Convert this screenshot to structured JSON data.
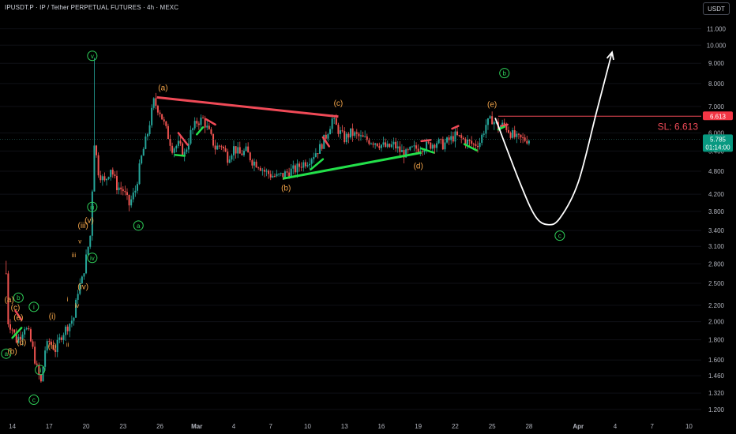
{
  "header": {
    "title": "IPUSDT.P · IP / Tether PERPETUAL FUTURES · 4h · MEXC",
    "currency": "USDT"
  },
  "colors": {
    "background": "#000000",
    "up_candle": "#26a69a",
    "down_candle": "#ef5350",
    "green_marker": "#2fd15a",
    "orange_label": "#f5a64a",
    "red_line": "#f04a57",
    "green_line": "#23e04a",
    "projection": "#ffffff",
    "price_tag_red": "#f23645",
    "price_tag_teal": "#089981"
  },
  "chart_data": {
    "type": "candlestick",
    "symbol": "IPUSDT.P",
    "timeframe": "4h",
    "y_scale": "log",
    "ylim": [
      1.14,
      12.2
    ],
    "y_ticks": [
      "11.000",
      "10.000",
      "9.000",
      "8.000",
      "7.000",
      "6.000",
      "5.400",
      "4.800",
      "4.200",
      "3.800",
      "3.400",
      "3.100",
      "2.800",
      "2.500",
      "2.200",
      "2.000",
      "1.800",
      "1.600",
      "1.460",
      "1.320",
      "1.200"
    ],
    "x_range": [
      "2025-02-13",
      "2025-04-11"
    ],
    "x_ticks": [
      {
        "date": "2025-02-14",
        "label": "14"
      },
      {
        "date": "2025-02-17",
        "label": "17"
      },
      {
        "date": "2025-02-20",
        "label": "20"
      },
      {
        "date": "2025-02-23",
        "label": "23"
      },
      {
        "date": "2025-02-26",
        "label": "26"
      },
      {
        "date": "2025-03-01",
        "label": "Mar"
      },
      {
        "date": "2025-03-04",
        "label": "4"
      },
      {
        "date": "2025-03-07",
        "label": "7"
      },
      {
        "date": "2025-03-10",
        "label": "10"
      },
      {
        "date": "2025-03-13",
        "label": "13"
      },
      {
        "date": "2025-03-16",
        "label": "16"
      },
      {
        "date": "2025-03-19",
        "label": "19"
      },
      {
        "date": "2025-03-22",
        "label": "22"
      },
      {
        "date": "2025-03-25",
        "label": "25"
      },
      {
        "date": "2025-03-28",
        "label": "28"
      },
      {
        "date": "2025-04-01",
        "label": "Apr"
      },
      {
        "date": "2025-04-04",
        "label": "4"
      },
      {
        "date": "2025-04-07",
        "label": "7"
      },
      {
        "date": "2025-04-10",
        "label": "10"
      }
    ],
    "price_path": [
      [
        "2025-02-13 12:00",
        2.65
      ],
      [
        "2025-02-13 16:00",
        2.0
      ],
      [
        "2025-02-14 00:00",
        1.92
      ],
      [
        "2025-02-14 08:00",
        1.8
      ],
      [
        "2025-02-14 16:00",
        1.85
      ],
      [
        "2025-02-15 00:00",
        1.95
      ],
      [
        "2025-02-15 08:00",
        1.86
      ],
      [
        "2025-02-15 16:00",
        1.7
      ],
      [
        "2025-02-16 00:00",
        1.52
      ],
      [
        "2025-02-16 08:00",
        1.4
      ],
      [
        "2025-02-16 16:00",
        1.7
      ],
      [
        "2025-02-17 00:00",
        1.78
      ],
      [
        "2025-02-17 12:00",
        1.7
      ],
      [
        "2025-02-18 00:00",
        1.85
      ],
      [
        "2025-02-18 12:00",
        1.95
      ],
      [
        "2025-02-19 00:00",
        2.05
      ],
      [
        "2025-02-19 08:00",
        2.4
      ],
      [
        "2025-02-19 16:00",
        2.55
      ],
      [
        "2025-02-20 00:00",
        2.9
      ],
      [
        "2025-02-20 08:00",
        3.3
      ],
      [
        "2025-02-20 16:00",
        5.7
      ],
      [
        "2025-02-21 00:00",
        4.8
      ],
      [
        "2025-02-21 12:00",
        4.5
      ],
      [
        "2025-02-22 00:00",
        4.9
      ],
      [
        "2025-02-22 12:00",
        4.4
      ],
      [
        "2025-02-23 00:00",
        4.3
      ],
      [
        "2025-02-23 12:00",
        3.95
      ],
      [
        "2025-02-24 00:00",
        4.3
      ],
      [
        "2025-02-24 12:00",
        5.2
      ],
      [
        "2025-02-25 00:00",
        6.0
      ],
      [
        "2025-02-25 12:00",
        7.2
      ],
      [
        "2025-02-26 00:00",
        6.8
      ],
      [
        "2025-02-26 12:00",
        6.1
      ],
      [
        "2025-02-27 00:00",
        5.5
      ],
      [
        "2025-02-27 12:00",
        5.6
      ],
      [
        "2025-02-28 00:00",
        5.3
      ],
      [
        "2025-02-28 12:00",
        6.0
      ],
      [
        "2025-03-01 00:00",
        6.4
      ],
      [
        "2025-03-01 12:00",
        6.5
      ],
      [
        "2025-03-02 00:00",
        6.0
      ],
      [
        "2025-03-02 12:00",
        5.5
      ],
      [
        "2025-03-03 00:00",
        5.6
      ],
      [
        "2025-03-03 12:00",
        5.2
      ],
      [
        "2025-03-04 00:00",
        5.5
      ],
      [
        "2025-03-04 12:00",
        5.3
      ],
      [
        "2025-03-05 00:00",
        5.4
      ],
      [
        "2025-03-05 12:00",
        5.1
      ],
      [
        "2025-03-06 00:00",
        5.0
      ],
      [
        "2025-03-06 12:00",
        4.8
      ],
      [
        "2025-03-07 00:00",
        4.7
      ],
      [
        "2025-03-07 12:00",
        4.65
      ],
      [
        "2025-03-08 00:00",
        4.7
      ],
      [
        "2025-03-08 12:00",
        4.8
      ],
      [
        "2025-03-09 00:00",
        4.85
      ],
      [
        "2025-03-09 12:00",
        5.0
      ],
      [
        "2025-03-10 00:00",
        5.1
      ],
      [
        "2025-03-10 12:00",
        5.3
      ],
      [
        "2025-03-11 00:00",
        5.5
      ],
      [
        "2025-03-11 12:00",
        5.9
      ],
      [
        "2025-03-12 00:00",
        6.5
      ],
      [
        "2025-03-12 12:00",
        6.1
      ],
      [
        "2025-03-13 00:00",
        5.8
      ],
      [
        "2025-03-13 12:00",
        6.0
      ],
      [
        "2025-03-14 00:00",
        5.9
      ],
      [
        "2025-03-14 12:00",
        5.8
      ],
      [
        "2025-03-15 00:00",
        5.75
      ],
      [
        "2025-03-15 12:00",
        5.7
      ],
      [
        "2025-03-16 00:00",
        5.6
      ],
      [
        "2025-03-16 12:00",
        5.5
      ],
      [
        "2025-03-17 00:00",
        5.6
      ],
      [
        "2025-03-17 12:00",
        5.4
      ],
      [
        "2025-03-18 00:00",
        5.3
      ],
      [
        "2025-03-18 12:00",
        5.45
      ],
      [
        "2025-03-19 00:00",
        5.5
      ],
      [
        "2025-03-19 12:00",
        5.55
      ],
      [
        "2025-03-20 00:00",
        5.6
      ],
      [
        "2025-03-20 12:00",
        5.7
      ],
      [
        "2025-03-21 00:00",
        5.6
      ],
      [
        "2025-03-21 12:00",
        5.75
      ],
      [
        "2025-03-22 00:00",
        5.9
      ],
      [
        "2025-03-22 12:00",
        5.8
      ],
      [
        "2025-03-23 00:00",
        5.7
      ],
      [
        "2025-03-23 12:00",
        5.6
      ],
      [
        "2025-03-24 00:00",
        5.7
      ],
      [
        "2025-03-24 12:00",
        6.3
      ],
      [
        "2025-03-25 00:00",
        6.5
      ],
      [
        "2025-03-25 12:00",
        6.2
      ],
      [
        "2025-03-26 00:00",
        6.3
      ],
      [
        "2025-03-26 12:00",
        6.0
      ],
      [
        "2025-03-27 00:00",
        5.8
      ],
      [
        "2025-03-27 12:00",
        5.78
      ],
      [
        "2025-03-28 00:00",
        5.785
      ]
    ],
    "drawings": {
      "stop_loss": {
        "price": 6.613,
        "from": "2025-03-25 12:00",
        "label": "SL: 6.613"
      },
      "upper_trendline": {
        "from": [
          "2025-02-25 18:00",
          7.38
        ],
        "to": [
          "2025-03-12 12:00",
          6.6
        ]
      },
      "lower_trendline": {
        "from": [
          "2025-03-08 00:00",
          4.6
        ],
        "to": [
          "2025-03-19 06:00",
          5.35
        ]
      },
      "projection_path": [
        [
          "2025-03-25 06:00",
          6.55
        ],
        [
          "2025-03-27 06:00",
          4.5
        ],
        [
          "2025-03-28 12:00",
          3.7
        ],
        [
          "2025-03-29 12:00",
          3.52
        ],
        [
          "2025-03-30 12:00",
          3.65
        ],
        [
          "2025-04-01 00:00",
          4.5
        ],
        [
          "2025-04-02 12:00",
          6.8
        ],
        [
          "2025-04-03 18:00",
          9.6
        ]
      ]
    },
    "wave_labels": [
      {
        "text": "v",
        "date": "2025-02-20 12:00",
        "price": 9.4,
        "style": "green-circle"
      },
      {
        "text": "iii",
        "date": "2025-02-20 12:00",
        "price": 3.9,
        "style": "green-circle"
      },
      {
        "text": "iv",
        "date": "2025-02-20 12:00",
        "price": 2.9,
        "style": "green-circle"
      },
      {
        "text": "a",
        "date": "2025-02-24 06:00",
        "price": 3.5,
        "style": "green-circle"
      },
      {
        "text": "b",
        "date": "2025-03-26 00:00",
        "price": 8.5,
        "style": "green-circle"
      },
      {
        "text": "c",
        "date": "2025-03-30 12:00",
        "price": 3.3,
        "style": "green-circle"
      },
      {
        "text": "a",
        "date": "2025-02-13 12:00",
        "price": 1.66,
        "style": "green-circle"
      },
      {
        "text": "b",
        "date": "2025-02-14 12:00",
        "price": 2.3,
        "style": "green-circle"
      },
      {
        "text": "c",
        "date": "2025-02-15 18:00",
        "price": 1.27,
        "style": "green-circle"
      },
      {
        "text": "i",
        "date": "2025-02-15 18:00",
        "price": 2.18,
        "style": "green-circle"
      },
      {
        "text": "ii",
        "date": "2025-02-16 06:00",
        "price": 1.51,
        "style": "green-circle"
      },
      {
        "text": "(a)",
        "date": "2025-02-26 06:00",
        "price": 7.8,
        "style": "orange"
      },
      {
        "text": "(c)",
        "date": "2025-03-12 12:00",
        "price": 7.12,
        "style": "orange"
      },
      {
        "text": "(e)",
        "date": "2025-03-25 00:00",
        "price": 7.08,
        "style": "orange"
      },
      {
        "text": "(b)",
        "date": "2025-03-08 06:00",
        "price": 4.35,
        "style": "orange"
      },
      {
        "text": "(d)",
        "date": "2025-03-19 00:00",
        "price": 4.95,
        "style": "orange"
      },
      {
        "text": "(a)",
        "date": "2025-02-13 18:00",
        "price": 2.27,
        "style": "orange"
      },
      {
        "text": "(c)",
        "date": "2025-02-14 06:00",
        "price": 2.17,
        "style": "orange"
      },
      {
        "text": "(e)",
        "date": "2025-02-14 12:00",
        "price": 2.05,
        "style": "orange"
      },
      {
        "text": "(b)",
        "date": "2025-02-14 00:00",
        "price": 1.68,
        "style": "orange"
      },
      {
        "text": "(d)",
        "date": "2025-02-14 18:00",
        "price": 1.77,
        "style": "orange"
      },
      {
        "text": "(i)",
        "date": "2025-02-17 06:00",
        "price": 2.06,
        "style": "orange"
      },
      {
        "text": "(ii)",
        "date": "2025-02-17 06:00",
        "price": 1.73,
        "style": "orange"
      },
      {
        "text": "(iii)",
        "date": "2025-02-19 18:00",
        "price": 3.5,
        "style": "orange"
      },
      {
        "text": "(v)",
        "date": "2025-02-20 06:00",
        "price": 3.6,
        "style": "orange"
      },
      {
        "text": "(iv)",
        "date": "2025-02-19 18:00",
        "price": 2.45,
        "style": "orange"
      },
      {
        "text": "i",
        "date": "2025-02-18 12:00",
        "price": 2.28,
        "style": "orange-small"
      },
      {
        "text": "ii",
        "date": "2025-02-18 12:00",
        "price": 1.75,
        "style": "orange-small"
      },
      {
        "text": "iii",
        "date": "2025-02-19 00:00",
        "price": 2.95,
        "style": "orange-small"
      },
      {
        "text": "iv",
        "date": "2025-02-19 06:00",
        "price": 2.2,
        "style": "orange-small"
      },
      {
        "text": "v",
        "date": "2025-02-19 12:00",
        "price": 3.2,
        "style": "orange-small"
      }
    ],
    "price_tags": [
      {
        "text": "6.613",
        "price": 6.613,
        "color": "#f23645"
      },
      {
        "text": "5.785",
        "price": 5.785,
        "color": "#089981",
        "sub": "01:14:00"
      }
    ]
  }
}
